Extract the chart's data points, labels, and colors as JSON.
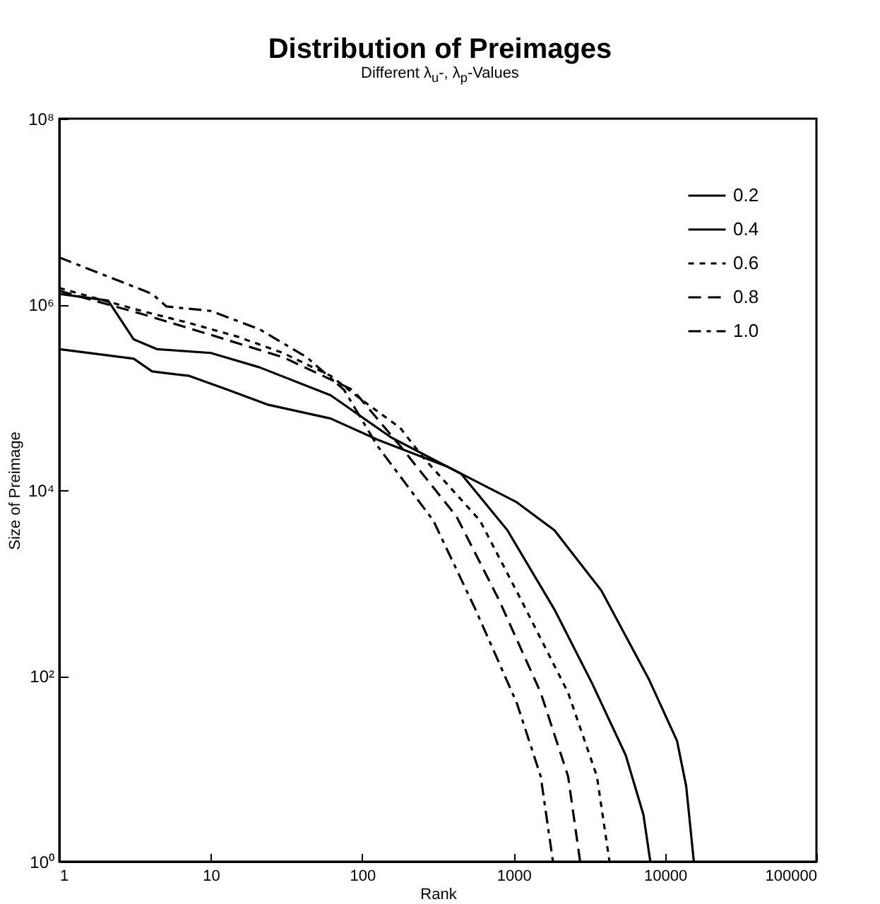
{
  "chart_data": {
    "type": "line",
    "title": "Distribution of Preimages",
    "subtitle": "Different   λ$_{u}$-,  λ$_{p}$-Values",
    "xlabel": "Rank",
    "ylabel": "Size of Preimage",
    "log": "xy",
    "grid": false,
    "legend": "top right",
    "marker": "none",
    "xlim": [
      1,
      100000
    ],
    "xticks": [
      1,
      10,
      100,
      1000,
      10000,
      100000
    ],
    "ylim": [
      1,
      100000000
    ],
    "yticks": [
      {
        "value": 1,
        "label": "10⁰"
      },
      {
        "value": 100,
        "label": "10²"
      },
      {
        "value": 10000,
        "label": "10⁴"
      },
      {
        "value": 1000000,
        "label": "10⁶"
      },
      {
        "value": 100000000,
        "label": "10⁸"
      }
    ],
    "series": [
      {
        "name": "0.2",
        "color": "#000000",
        "line_style": "solid",
        "x": [
          1,
          3.1,
          4.1,
          7.2,
          13,
          24,
          62,
          126,
          363,
          1050,
          1860,
          3800,
          7800,
          12000,
          13800,
          15500
        ],
        "values": [
          330000,
          260000,
          190000,
          170000,
          120000,
          83000,
          59000,
          35000,
          18000,
          7400,
          3700,
          830,
          93,
          20,
          6.5,
          1
        ]
      },
      {
        "name": "0.4",
        "color": "#000000",
        "line_style": "solid",
        "x": [
          1,
          2.1,
          3.1,
          4.4,
          10,
          21,
          62,
          155,
          450,
          910,
          1860,
          3300,
          5500,
          7200,
          8000
        ],
        "values": [
          1300000,
          1100000,
          420000,
          330000,
          300000,
          210000,
          105000,
          37000,
          15000,
          3700,
          520,
          83,
          14,
          3.2,
          1
        ]
      },
      {
        "name": "0.6",
        "color": "#000000",
        "line_style": "dotted",
        "x": [
          1,
          3.5,
          7.2,
          15,
          30,
          62,
          100,
          178,
          250,
          600,
          1120,
          2290,
          3550,
          4300
        ],
        "values": [
          1500000,
          850000,
          630000,
          450000,
          300000,
          170000,
          93000,
          47000,
          23000,
          4700,
          660,
          66,
          8.3,
          1
        ]
      },
      {
        "name": "0.8",
        "color": "#000000",
        "line_style": "dashed",
        "x": [
          1,
          3.5,
          10,
          30,
          87,
          178,
          420,
          800,
          1510,
          2290,
          2750
        ],
        "values": [
          1400000,
          790000,
          470000,
          270000,
          120000,
          30000,
          5200,
          660,
          66,
          8.3,
          1
        ]
      },
      {
        "name": "1.0",
        "color": "#000000",
        "line_style": "dashdot",
        "x": [
          1,
          4.1,
          5.1,
          10,
          21,
          43,
          76,
          126,
          295,
          560,
          1050,
          1510,
          1820
        ],
        "values": [
          3200000,
          1300000,
          950000,
          850000,
          540000,
          270000,
          120000,
          30000,
          4700,
          520,
          51,
          8.3,
          1
        ]
      }
    ]
  }
}
